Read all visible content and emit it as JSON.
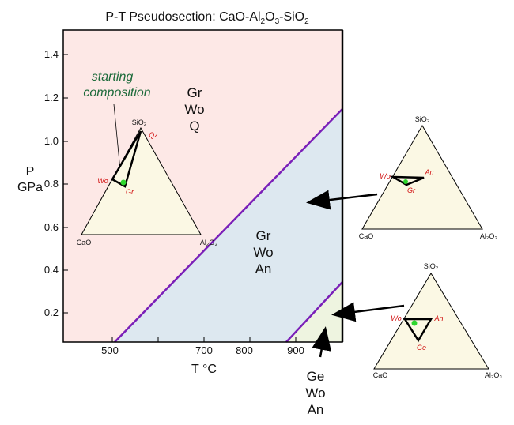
{
  "title": {
    "main": "P-T Pseudosection: CaO-Al",
    "sub1": "2",
    "mid1": "O",
    "sub2": "3",
    "mid2": "-SiO",
    "sub3": "2"
  },
  "axes": {
    "y_label_line1": "P",
    "y_label_line2": "GPa",
    "x_label": "T °C",
    "y_ticks": [
      "1.4",
      "1.2",
      "1.0",
      "0.8",
      "0.6",
      "0.4",
      "0.2"
    ],
    "x_ticks": [
      "500",
      "700",
      "800",
      "900"
    ]
  },
  "fields": {
    "upper": {
      "line1": "Gr",
      "line2": "Wo",
      "line3": "Q"
    },
    "middle": {
      "line1": "Gr",
      "line2": "Wo",
      "line3": "An"
    },
    "lower": {
      "line1": "Ge",
      "line2": "Wo",
      "line3": "An"
    }
  },
  "annotation": {
    "line1": "starting",
    "line2": "composition"
  },
  "ternaries": {
    "inner": {
      "top": "SiO₂",
      "left": "CaO",
      "right": "Al₂O₃",
      "p1": "Qz",
      "p2": "Wo",
      "p3": "Gr"
    },
    "right1": {
      "top": "SiO₂",
      "left": "CaO",
      "right": "Al₂O₃",
      "p1": "An",
      "p2": "Wo",
      "p3": "Gr"
    },
    "right2": {
      "top": "SiO₂",
      "left": "CaO",
      "right": "Al₂O₃",
      "p1": "An",
      "p2": "Wo",
      "p3": "Ge"
    }
  },
  "colors": {
    "upper_field": "#fde8e6",
    "middle_field": "#dde8f0",
    "lower_field": "#eef4e0",
    "triangle_fill": "#fbf8e4",
    "boundary": "#7a1fb8",
    "phase_label": "#d01010",
    "annotation": "#1c6a3a",
    "composition_dot": "#2ed62e"
  }
}
